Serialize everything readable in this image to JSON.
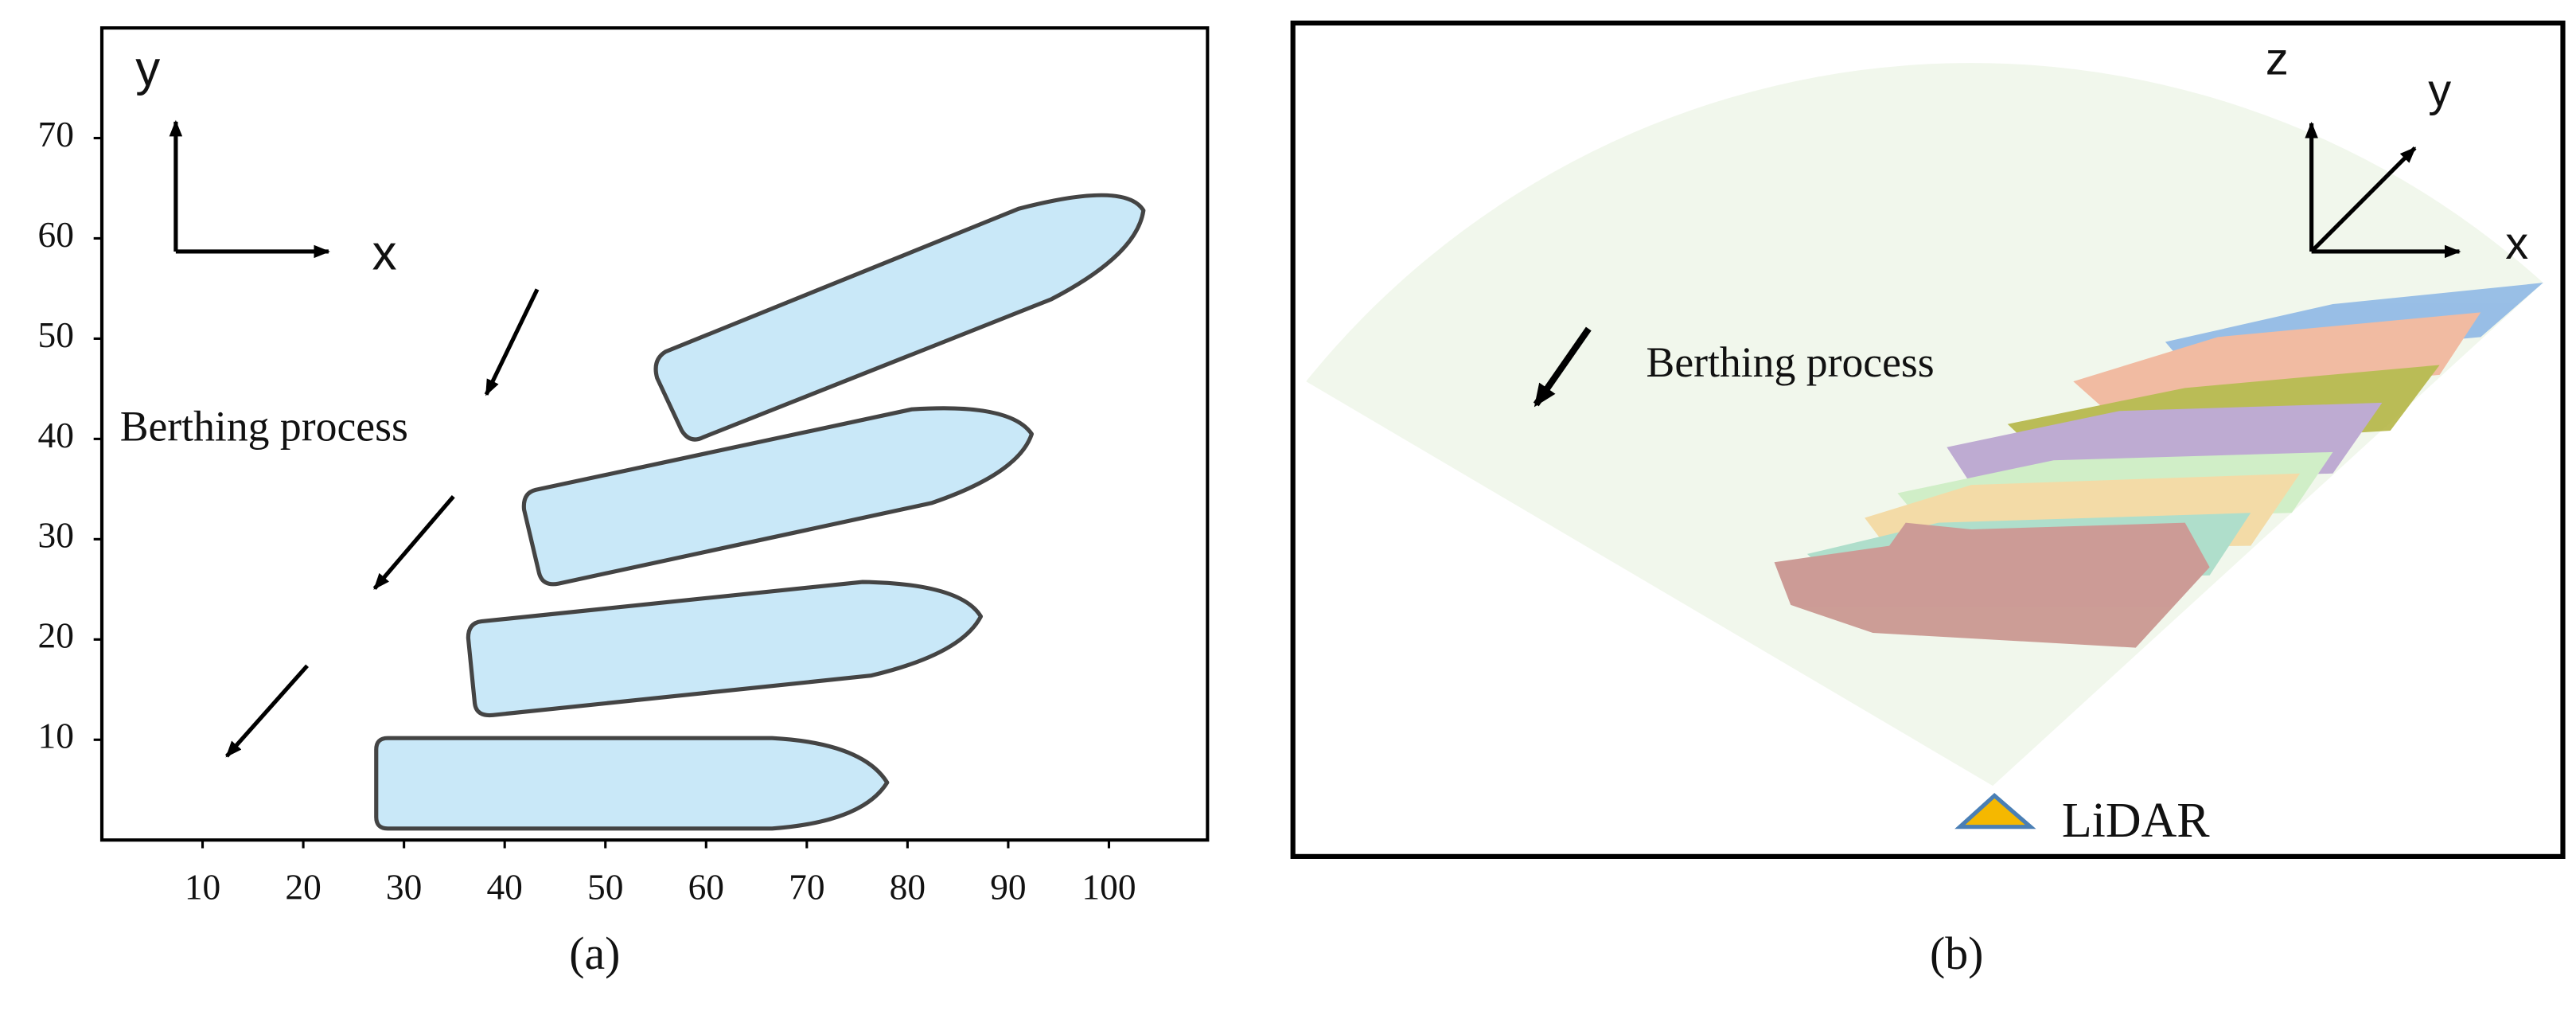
{
  "panel_a": {
    "axis_labels": {
      "x": "x",
      "y": "y"
    },
    "annotation": "Berthing process",
    "xticks": [
      10,
      20,
      30,
      40,
      50,
      60,
      70,
      80,
      90,
      100
    ],
    "yticks": [
      10,
      20,
      30,
      40,
      50,
      60,
      70
    ],
    "caption": "(a)"
  },
  "panel_b": {
    "axis_labels": {
      "x": "x",
      "y": "y",
      "z": "z"
    },
    "annotation": "Berthing process",
    "sensor_label": "LiDAR",
    "caption": "(b)"
  }
}
